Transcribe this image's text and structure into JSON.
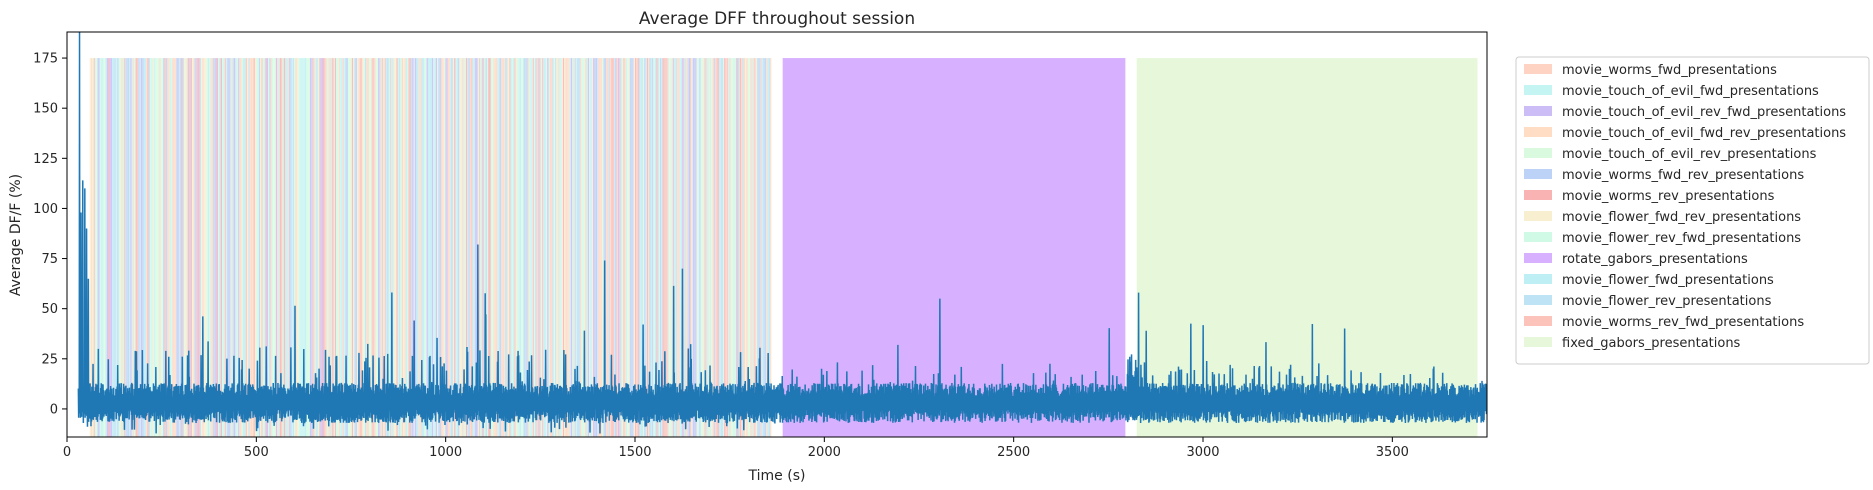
{
  "chart_data": {
    "type": "line",
    "title": "Average DFF throughout session",
    "xlabel": "Time (s)",
    "ylabel": "Average DF/F (%)",
    "xlim": [
      0,
      3750
    ],
    "ylim": [
      -14,
      188
    ],
    "xticks": [
      0,
      500,
      1000,
      1500,
      2000,
      2500,
      3000,
      3500
    ],
    "yticks": [
      0,
      25,
      50,
      75,
      100,
      125,
      150,
      175
    ],
    "grid": false,
    "legend_position": "outside-right",
    "trace": {
      "color": "#1f77b4",
      "start": 30,
      "end": 3750,
      "baseline": 3,
      "notable_peaks": [
        {
          "x": 33,
          "y": 188
        },
        {
          "x": 37,
          "y": 98
        },
        {
          "x": 42,
          "y": 114
        },
        {
          "x": 47,
          "y": 110
        },
        {
          "x": 52,
          "y": 90
        },
        {
          "x": 1085,
          "y": 82
        },
        {
          "x": 1420,
          "y": 74
        },
        {
          "x": 1625,
          "y": 70
        },
        {
          "x": 2305,
          "y": 55
        },
        {
          "x": 2830,
          "y": 58
        }
      ]
    },
    "epochs": {
      "top": 175,
      "random_block": {
        "start": 60,
        "end": 1860,
        "approx_count": 520
      },
      "blocks": [
        {
          "stimulus": "rotate_gabors_presentations",
          "start": 1890,
          "end": 2795
        },
        {
          "stimulus": "fixed_gabors_presentations",
          "start": 2825,
          "end": 3725
        }
      ]
    },
    "legend": [
      {
        "label": "movie_worms_fwd_presentations",
        "color": "#ffd3c4"
      },
      {
        "label": "movie_touch_of_evil_fwd_presentations",
        "color": "#c5f5f2"
      },
      {
        "label": "movie_touch_of_evil_rev_fwd_presentations",
        "color": "#cdbdf7"
      },
      {
        "label": "movie_touch_of_evil_fwd_rev_presentations",
        "color": "#ffdcc4"
      },
      {
        "label": "movie_touch_of_evil_rev_presentations",
        "color": "#d9fadf"
      },
      {
        "label": "movie_worms_fwd_rev_presentations",
        "color": "#bcd3f7"
      },
      {
        "label": "movie_worms_rev_presentations",
        "color": "#f9b3b3"
      },
      {
        "label": "movie_flower_fwd_rev_presentations",
        "color": "#f7efcf"
      },
      {
        "label": "movie_flower_rev_fwd_presentations",
        "color": "#d0fae5"
      },
      {
        "label": "rotate_gabors_presentations",
        "color": "#d7b0ff"
      },
      {
        "label": "movie_flower_fwd_presentations",
        "color": "#bdeff5"
      },
      {
        "label": "movie_flower_rev_presentations",
        "color": "#bde3f4"
      },
      {
        "label": "movie_worms_rev_fwd_presentations",
        "color": "#fcc3bb"
      },
      {
        "label": "fixed_gabors_presentations",
        "color": "#e6f7da"
      }
    ]
  }
}
